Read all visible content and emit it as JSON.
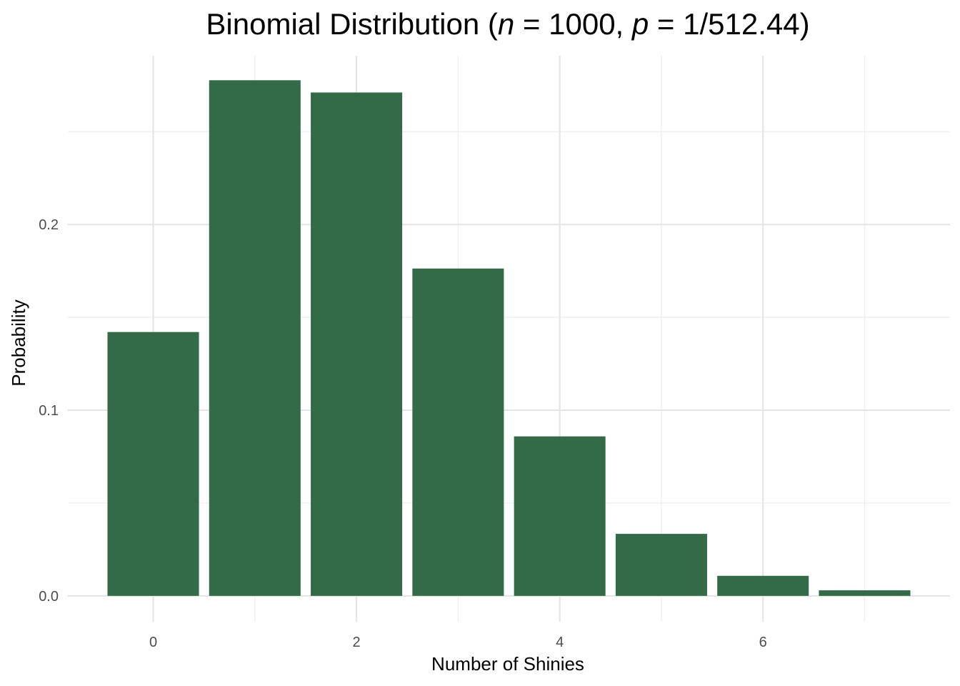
{
  "chart_data": {
    "type": "bar",
    "title": {
      "prefix": "Binomial Distribution (",
      "n_symbol": "n",
      "n_part": " = 1000, ",
      "p_symbol": "p",
      "p_part": " = 1/512.44)"
    },
    "xlabel": "Number of Shinies",
    "ylabel": "Probability",
    "x": [
      0,
      1,
      2,
      3,
      4,
      5,
      6,
      7
    ],
    "values": [
      0.1421,
      0.2777,
      0.2711,
      0.1763,
      0.0859,
      0.0334,
      0.0108,
      0.003
    ],
    "x_ticks": [
      0,
      2,
      4,
      6
    ],
    "x_tick_labels": [
      "0",
      "2",
      "4",
      "6"
    ],
    "y_ticks": [
      0.0,
      0.1,
      0.2
    ],
    "y_tick_labels": [
      "0.0",
      "0.1",
      "0.2"
    ],
    "xlim": [
      -0.84,
      7.84
    ],
    "ylim": [
      -0.0139,
      0.2909
    ],
    "bar_color": "#336b48",
    "grid": true
  }
}
